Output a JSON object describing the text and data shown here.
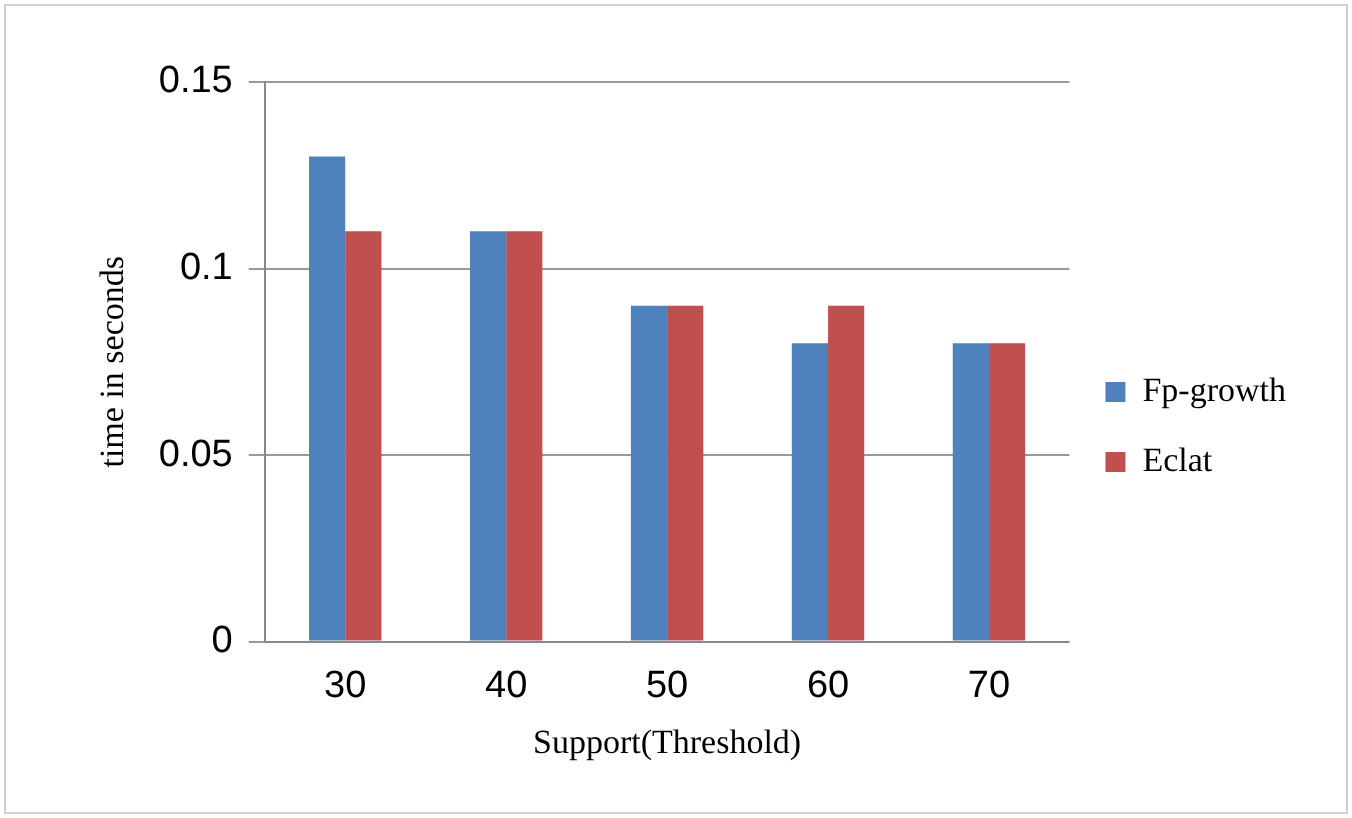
{
  "chart_data": {
    "type": "bar",
    "xlabel": "Support(Threshold)",
    "ylabel": "time in seconds",
    "categories": [
      "30",
      "40",
      "50",
      "60",
      "70"
    ],
    "series": [
      {
        "name": "Fp-growth",
        "color": "#4f81bd",
        "values": [
          0.13,
          0.11,
          0.09,
          0.08,
          0.08
        ]
      },
      {
        "name": "Eclat",
        "color": "#c0504d",
        "values": [
          0.11,
          0.11,
          0.09,
          0.09,
          0.08
        ]
      }
    ],
    "ylim": [
      0,
      0.15
    ],
    "yticks": [
      0,
      0.05,
      0.1,
      0.15
    ],
    "grid": "y",
    "legend": "right"
  }
}
